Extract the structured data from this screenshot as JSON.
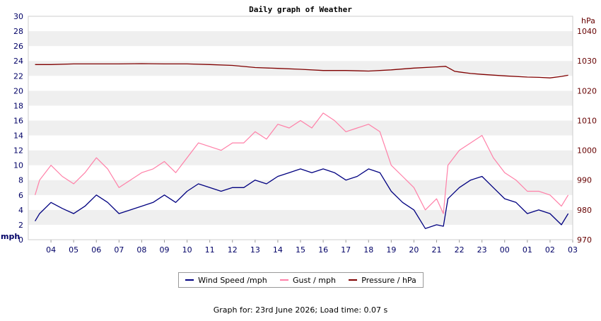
{
  "chart_data": {
    "type": "line",
    "title": "Daily graph of Weather",
    "left_axis": {
      "unit": "mph",
      "ylim": [
        0,
        30
      ],
      "ticks": [
        0,
        2,
        4,
        6,
        8,
        10,
        12,
        14,
        16,
        18,
        20,
        22,
        24,
        26,
        28,
        30
      ],
      "color": "#000066"
    },
    "right_axis": {
      "unit": "hPa",
      "ylim": [
        970,
        1045
      ],
      "ticks": [
        970,
        980,
        990,
        1000,
        1010,
        1020,
        1030,
        1040
      ],
      "color": "#660000"
    },
    "x_ticks": [
      "04",
      "05",
      "06",
      "07",
      "08",
      "09",
      "10",
      "11",
      "12",
      "13",
      "14",
      "15",
      "16",
      "17",
      "18",
      "19",
      "20",
      "21",
      "22",
      "23",
      "00",
      "01",
      "02",
      "03"
    ],
    "grid": "horizontal bands",
    "series": [
      {
        "name": "Wind Speed /mph",
        "axis": "left",
        "color": "#000080",
        "x": [
          3.3,
          3.5,
          4.0,
          4.5,
          5.0,
          5.5,
          6.0,
          6.5,
          7.0,
          7.5,
          8.0,
          8.5,
          9.0,
          9.5,
          10.0,
          10.5,
          11.0,
          11.5,
          12.0,
          12.5,
          13.0,
          13.5,
          14.0,
          14.5,
          15.0,
          15.5,
          16.0,
          16.5,
          17.0,
          17.5,
          18.0,
          18.5,
          19.0,
          19.5,
          20.0,
          20.5,
          21.0,
          21.3,
          21.5,
          22.0,
          22.5,
          23.0,
          23.5,
          24.0,
          24.5,
          25.0,
          25.5,
          26.0,
          26.5,
          26.8
        ],
        "values": [
          2.5,
          3.5,
          5.0,
          4.2,
          3.5,
          4.5,
          6.0,
          5.0,
          3.5,
          4.0,
          4.5,
          5.0,
          6.0,
          5.0,
          6.5,
          7.5,
          7.0,
          6.5,
          7.0,
          7.0,
          8.0,
          7.5,
          8.5,
          9.0,
          9.5,
          9.0,
          9.5,
          9.0,
          8.0,
          8.5,
          9.5,
          9.0,
          6.5,
          5.0,
          4.0,
          1.5,
          2.0,
          1.8,
          5.5,
          7.0,
          8.0,
          8.5,
          7.0,
          5.5,
          5.0,
          3.5,
          4.0,
          3.5,
          2.0,
          3.5
        ]
      },
      {
        "name": "Gust / mph",
        "axis": "left",
        "color": "#ff80a8",
        "x": [
          3.3,
          3.5,
          4.0,
          4.5,
          5.0,
          5.5,
          6.0,
          6.5,
          7.0,
          7.5,
          8.0,
          8.5,
          9.0,
          9.5,
          10.0,
          10.5,
          11.0,
          11.5,
          12.0,
          12.5,
          13.0,
          13.5,
          14.0,
          14.5,
          15.0,
          15.5,
          16.0,
          16.5,
          17.0,
          17.5,
          18.0,
          18.5,
          19.0,
          19.5,
          20.0,
          20.5,
          21.0,
          21.3,
          21.5,
          22.0,
          22.5,
          23.0,
          23.5,
          24.0,
          24.5,
          25.0,
          25.5,
          26.0,
          26.5,
          26.8
        ],
        "values": [
          6.0,
          8.0,
          10.0,
          8.5,
          7.5,
          9.0,
          11.0,
          9.5,
          7.0,
          8.0,
          9.0,
          9.5,
          10.5,
          9.0,
          11.0,
          13.0,
          12.5,
          12.0,
          13.0,
          13.0,
          14.5,
          13.5,
          15.5,
          15.0,
          16.0,
          15.0,
          17.0,
          16.0,
          14.5,
          15.0,
          15.5,
          14.5,
          10.0,
          8.5,
          7.0,
          4.0,
          5.5,
          3.5,
          10.0,
          12.0,
          13.0,
          14.0,
          11.0,
          9.0,
          8.0,
          6.5,
          6.5,
          6.0,
          4.5,
          6.0
        ]
      },
      {
        "name": "Pressure / hPa",
        "axis": "right",
        "color": "#800000",
        "x": [
          3.3,
          4.0,
          5.0,
          6.0,
          7.0,
          8.0,
          9.0,
          10.0,
          11.0,
          12.0,
          13.0,
          14.0,
          15.0,
          16.0,
          17.0,
          18.0,
          19.0,
          20.0,
          21.0,
          21.4,
          21.8,
          22.0,
          22.5,
          23.0,
          24.0,
          25.0,
          25.5,
          26.0,
          26.5,
          26.8
        ],
        "values": [
          1028.8,
          1028.8,
          1029.0,
          1029.0,
          1029.0,
          1029.1,
          1029.0,
          1029.0,
          1028.8,
          1028.5,
          1027.8,
          1027.5,
          1027.2,
          1026.8,
          1026.8,
          1026.6,
          1027.0,
          1027.6,
          1028.0,
          1028.2,
          1026.5,
          1026.3,
          1025.8,
          1025.5,
          1025.0,
          1024.6,
          1024.5,
          1024.3,
          1024.8,
          1025.2
        ]
      }
    ],
    "legend_placement": "bottom"
  },
  "footer": "Graph for: 23rd June 2026; Load time: 0.07 s"
}
